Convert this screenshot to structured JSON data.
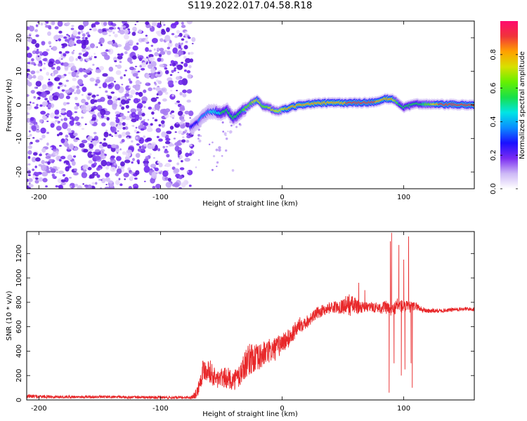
{
  "title": "S119.2022.017.04.58.R18",
  "chart_data": [
    {
      "type": "heatmap",
      "xlabel": "Height of straight line (km)",
      "ylabel": "Frequency (Hz)",
      "xlim": [
        -210,
        158
      ],
      "ylim": [
        -25,
        25
      ],
      "xticks": [
        -200,
        -100,
        0,
        100
      ],
      "yticks": [
        -20,
        -10,
        0,
        10,
        20
      ],
      "colorbar": {
        "label": "Normalized spectral amplitude",
        "range": [
          0,
          1
        ],
        "ticks": [
          "0.0",
          "0.2",
          "0.4",
          "0.6",
          "0.8"
        ],
        "colors": [
          "#ffffff",
          "#cdb8f6",
          "#7a2cf2",
          "#1a10ff",
          "#0a8cff",
          "#00e5e5",
          "#18e04a",
          "#66f000",
          "#d8e000",
          "#ffa000",
          "#f0343a",
          "#ff0a6e"
        ]
      },
      "noise_region_x": [
        -210,
        -74
      ],
      "ridge": {
        "x": [
          -75,
          -70,
          -65,
          -60,
          -55,
          -50,
          -45,
          -40,
          -35,
          -30,
          -25,
          -20,
          -15,
          -10,
          -5,
          0,
          5,
          10,
          15,
          20,
          30,
          40,
          50,
          60,
          70,
          80,
          85,
          90,
          95,
          100,
          105,
          110,
          120,
          130,
          140,
          150,
          158
        ],
        "freq": [
          -6.5,
          -5.5,
          -3.5,
          -2.0,
          -2.0,
          -2.5,
          -1.5,
          -4.0,
          -2.5,
          -1.0,
          0.5,
          1.5,
          -0.5,
          -1.0,
          -2.0,
          -1.5,
          -1.0,
          -0.5,
          0.0,
          0.2,
          0.5,
          0.6,
          0.6,
          0.6,
          0.7,
          1.0,
          1.8,
          1.8,
          0.8,
          -0.8,
          -0.2,
          0.3,
          0.2,
          0.1,
          0.1,
          0.0,
          0.0
        ],
        "amplitude": [
          0.25,
          0.3,
          0.35,
          0.4,
          0.45,
          0.5,
          0.5,
          0.5,
          0.55,
          0.6,
          0.65,
          0.8,
          0.6,
          0.7,
          0.75,
          0.75,
          0.8,
          0.85,
          0.85,
          0.85,
          0.85,
          0.85,
          0.85,
          0.9,
          0.9,
          0.85,
          0.85,
          0.85,
          0.6,
          0.5,
          0.5,
          0.55,
          0.6,
          0.9,
          0.9,
          0.9,
          0.9
        ]
      }
    },
    {
      "type": "line",
      "xlabel": "Height of straight line (km)",
      "ylabel": "SNR (10 * v/v)",
      "xlim": [
        -210,
        158
      ],
      "ylim": [
        0,
        1380
      ],
      "xticks": [
        -200,
        -100,
        0,
        100
      ],
      "yticks": [
        0,
        200,
        400,
        600,
        800,
        1000,
        1200
      ],
      "series": [
        {
          "color": "#e8282a",
          "x": [
            -210,
            -180,
            -150,
            -120,
            -90,
            -75,
            -70,
            -65,
            -60,
            -55,
            -50,
            -45,
            -40,
            -35,
            -30,
            -25,
            -20,
            -15,
            -10,
            -5,
            0,
            5,
            10,
            15,
            20,
            25,
            30,
            35,
            40,
            45,
            50,
            55,
            60,
            65,
            70,
            75,
            80,
            85,
            90,
            95,
            100,
            105,
            110,
            115,
            120,
            130,
            140,
            150,
            158
          ],
          "y": [
            30,
            25,
            25,
            22,
            20,
            20,
            60,
            250,
            250,
            170,
            180,
            180,
            160,
            200,
            300,
            350,
            330,
            380,
            400,
            420,
            470,
            500,
            560,
            620,
            640,
            680,
            720,
            740,
            760,
            760,
            770,
            780,
            770,
            760,
            760,
            760,
            755,
            760,
            730,
            780,
            760,
            760,
            770,
            740,
            730,
            730,
            740,
            745,
            745
          ],
          "spread": [
            20,
            15,
            15,
            15,
            15,
            15,
            60,
            120,
            120,
            110,
            100,
            110,
            100,
            140,
            150,
            170,
            150,
            130,
            130,
            120,
            110,
            100,
            90,
            80,
            70,
            60,
            60,
            60,
            60,
            60,
            80,
            120,
            90,
            60,
            50,
            50,
            60,
            70,
            60,
            80,
            70,
            60,
            40,
            30,
            25,
            20,
            20,
            20,
            20
          ],
          "spikes": [
            {
              "x": 88,
              "y": 60
            },
            {
              "x": 89,
              "y": 1300
            },
            {
              "x": 90,
              "y": 1370
            },
            {
              "x": 92,
              "y": 300
            },
            {
              "x": 96,
              "y": 1270
            },
            {
              "x": 98,
              "y": 200
            },
            {
              "x": 100,
              "y": 1150
            },
            {
              "x": 101,
              "y": 250
            },
            {
              "x": 104,
              "y": 1340
            },
            {
              "x": 106,
              "y": 300
            },
            {
              "x": 107,
              "y": 100
            },
            {
              "x": 63,
              "y": 960
            },
            {
              "x": 68,
              "y": 900
            }
          ]
        }
      ]
    }
  ]
}
